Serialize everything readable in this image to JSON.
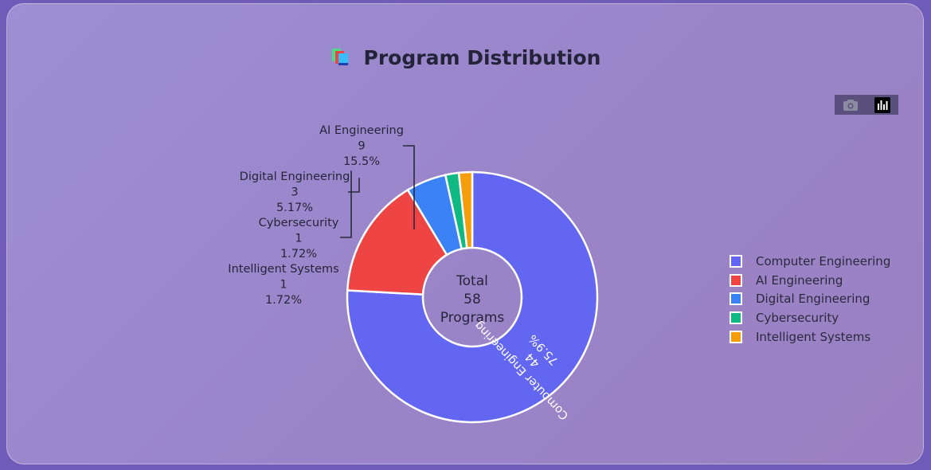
{
  "page": {
    "title": "Program Distribution",
    "title_icon": "books-icon"
  },
  "toolbar": {
    "camera_icon": "camera-icon",
    "chart_icon": "bar-chart-icon"
  },
  "chart_data": {
    "type": "pie",
    "donut": true,
    "title": "Program Distribution",
    "center_text": [
      "Total",
      "58",
      "Programs"
    ],
    "total": 58,
    "legend_position": "right",
    "slices": [
      {
        "label": "Computer Engineering",
        "value": 44,
        "percent": "75.9%",
        "color": "#6366f1"
      },
      {
        "label": "AI Engineering",
        "value": 9,
        "percent": "15.5%",
        "color": "#ef4444"
      },
      {
        "label": "Digital Engineering",
        "value": 3,
        "percent": "5.17%",
        "color": "#3b82f6"
      },
      {
        "label": "Cybersecurity",
        "value": 1,
        "percent": "1.72%",
        "color": "#10b981"
      },
      {
        "label": "Intelligent Systems",
        "value": 1,
        "percent": "1.72%",
        "color": "#f59e0b"
      }
    ]
  }
}
